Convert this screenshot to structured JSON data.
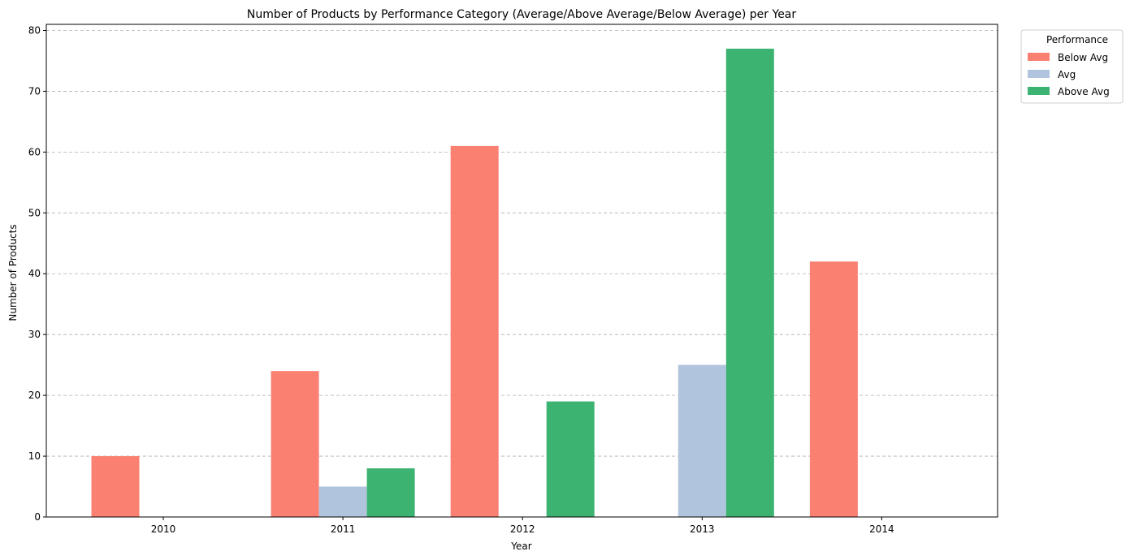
{
  "chart_data": {
    "type": "bar",
    "title": "Number of Products by Performance Category (Average/Above Average/Below Average) per Year",
    "xlabel": "Year",
    "ylabel": "Number of Products",
    "categories": [
      "2010",
      "2011",
      "2012",
      "2013",
      "2014"
    ],
    "series": [
      {
        "name": "Below Avg",
        "color": "#fa8072",
        "values": [
          10,
          24,
          61,
          0,
          42
        ]
      },
      {
        "name": "Avg",
        "color": "#b0c4de",
        "values": [
          0,
          5,
          0,
          25,
          0
        ]
      },
      {
        "name": "Above Avg",
        "color": "#3cb371",
        "values": [
          0,
          8,
          19,
          77,
          0
        ]
      }
    ],
    "ylim": [
      0,
      81
    ],
    "yticks": [
      0,
      10,
      20,
      30,
      40,
      50,
      60,
      70,
      80
    ],
    "grid": "y-dashed",
    "legend": {
      "title": "Performance",
      "placement": "outside-top-right"
    }
  }
}
